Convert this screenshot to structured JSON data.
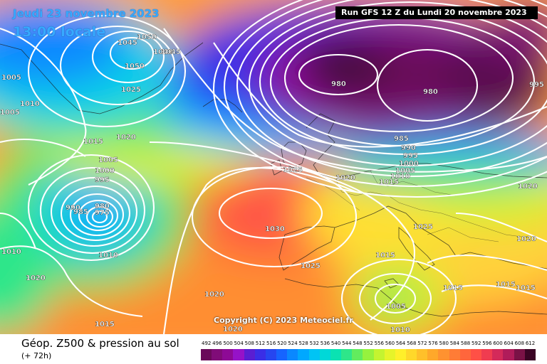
{
  "header": {
    "date": "Jeudi 23 novembre 2023",
    "local_time": "13:00 locale",
    "run": "Run GFS 12 Z du Lundi 20 novembre 2023"
  },
  "copyright": "Copyright (C) 2023 Meteociel.fr",
  "legend": {
    "title": "Géop. Z500 & pression au sol",
    "lead": "(+ 72h)",
    "values": [
      "492",
      "496",
      "500",
      "504",
      "508",
      "512",
      "516",
      "520",
      "524",
      "528",
      "532",
      "536",
      "540",
      "544",
      "548",
      "552",
      "556",
      "560",
      "564",
      "568",
      "572",
      "576",
      "580",
      "584",
      "588",
      "592",
      "596",
      "600",
      "604",
      "608",
      "612"
    ],
    "colors": [
      "#6a0a5a",
      "#800c78",
      "#8e0a96",
      "#9612c8",
      "#5a1ed2",
      "#3a2ee6",
      "#2646f0",
      "#1664ff",
      "#0a88ff",
      "#00a8ff",
      "#00c4f4",
      "#00d8d8",
      "#0ae2b2",
      "#2ee68a",
      "#62ec5e",
      "#96f23e",
      "#c4f430",
      "#e6f42a",
      "#fff02a",
      "#ffd82a",
      "#ffc02a",
      "#ffa82a",
      "#ff9230",
      "#ff7c36",
      "#ff663c",
      "#ff5046",
      "#f03c50",
      "#d42a5a",
      "#b01c5a",
      "#7a1246",
      "#3a0424"
    ]
  },
  "isobar_labels": [
    "1050",
    "1045",
    "1040",
    "1045",
    "1050",
    "1025",
    "1005",
    "1010",
    "1005",
    "1015",
    "1020",
    "1005",
    "1000",
    "995",
    "990",
    "985",
    "980",
    "975",
    "1010",
    "1010",
    "1020",
    "980",
    "980",
    "985",
    "990",
    "995",
    "1000",
    "1005",
    "1010",
    "1015",
    "995",
    "1025",
    "1020",
    "1030",
    "1025",
    "1025",
    "1020",
    "1015",
    "1015",
    "1015",
    "1015",
    "1005",
    "1010",
    "1020",
    "1015",
    "1020",
    "1020"
  ]
}
